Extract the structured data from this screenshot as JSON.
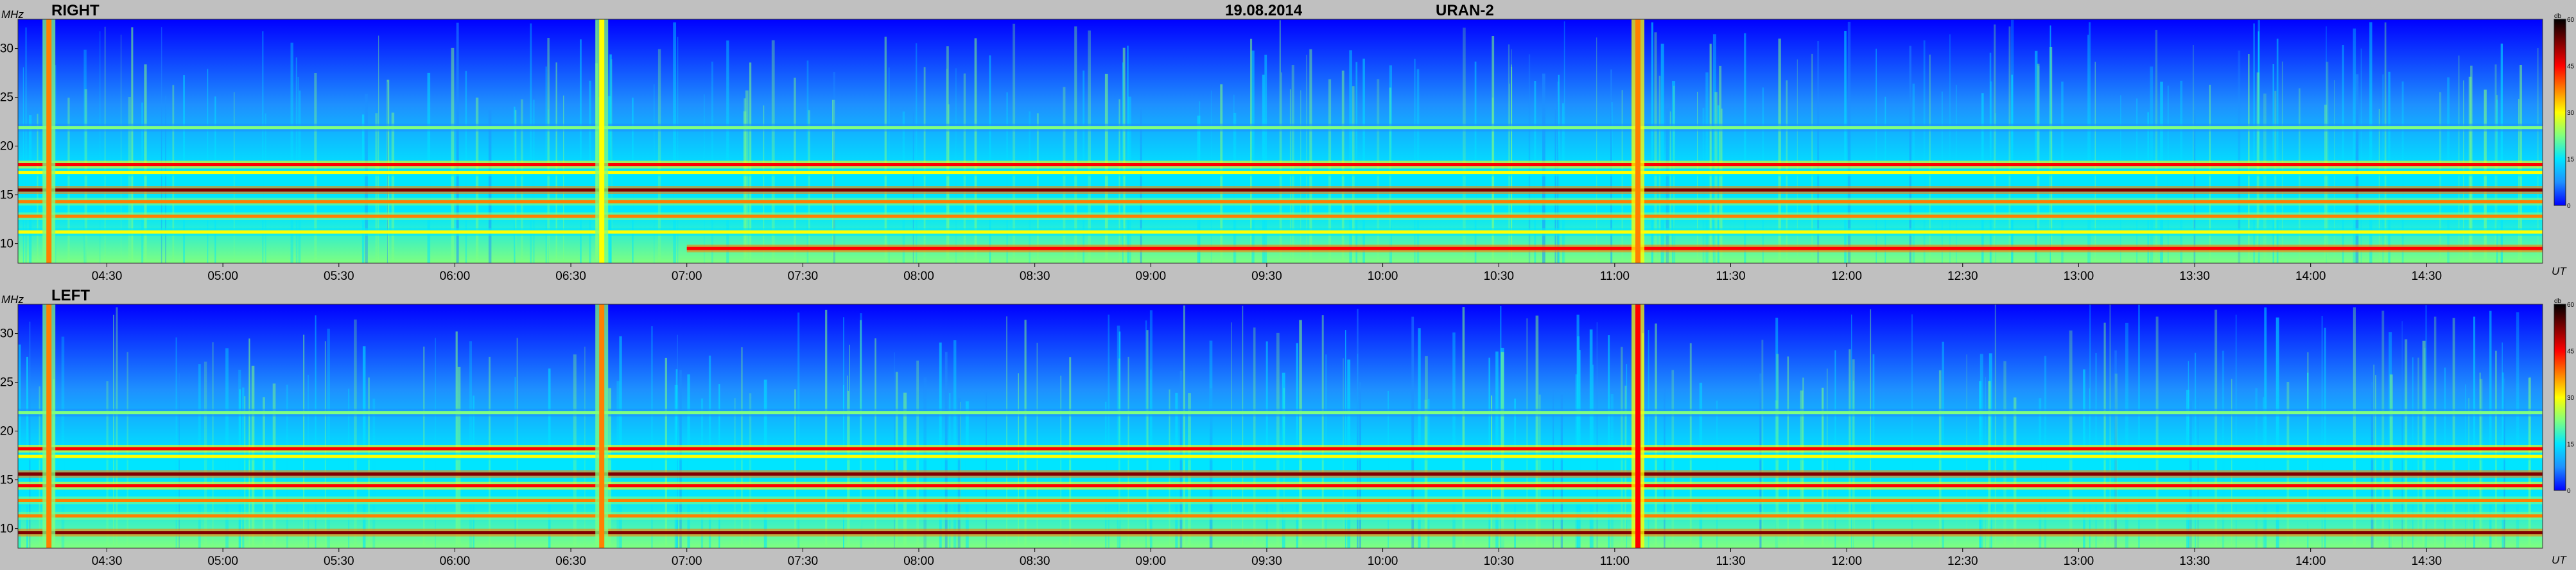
{
  "header": {
    "date": "19.08.2014",
    "instrument": "URAN-2"
  },
  "chart_data": {
    "type": "heatmap",
    "y_unit": "MHz",
    "x_unit": "UT",
    "x_range": [
      "04:07",
      "15:00"
    ],
    "y_range": [
      8,
      33
    ],
    "x_ticks": [
      "04:30",
      "05:00",
      "05:30",
      "06:00",
      "06:30",
      "07:00",
      "07:30",
      "08:00",
      "08:30",
      "09:00",
      "09:30",
      "10:00",
      "10:30",
      "11:00",
      "11:30",
      "12:00",
      "12:30",
      "13:00",
      "13:30",
      "14:00",
      "14:30"
    ],
    "y_ticks": [
      10,
      15,
      20,
      25,
      30
    ],
    "colorbar": {
      "unit": "db",
      "ticks": [
        0,
        15,
        30,
        45,
        60
      ],
      "range": [
        0,
        60
      ],
      "colors": [
        "#0000ff",
        "#1e90ff",
        "#00e5ff",
        "#7fff7f",
        "#ffff00",
        "#ff8000",
        "#ff0000",
        "#800000",
        "#000000"
      ]
    },
    "panels": [
      {
        "label": "RIGHT",
        "horizontal_bands_mhz": [
          {
            "f": 9.5,
            "level": 48,
            "start": "07:00"
          },
          {
            "f": 11.2,
            "level": 30
          },
          {
            "f": 12.8,
            "level": 36
          },
          {
            "f": 14.3,
            "level": 38
          },
          {
            "f": 15.5,
            "level": 50
          },
          {
            "f": 17.3,
            "level": 28
          },
          {
            "f": 18.1,
            "level": 46
          },
          {
            "f": 21.9,
            "level": 22
          }
        ],
        "vertical_bursts_ut": [
          {
            "t": "04:15",
            "level": 36
          },
          {
            "t": "06:38",
            "level": 32
          },
          {
            "t": "11:06",
            "level": 40
          }
        ]
      },
      {
        "label": "LEFT",
        "horizontal_bands_mhz": [
          {
            "f": 9.6,
            "level": 50
          },
          {
            "f": 11.3,
            "level": 36
          },
          {
            "f": 12.9,
            "level": 40
          },
          {
            "f": 14.4,
            "level": 42
          },
          {
            "f": 15.6,
            "level": 50
          },
          {
            "f": 17.4,
            "level": 30
          },
          {
            "f": 18.2,
            "level": 46
          },
          {
            "f": 21.9,
            "level": 22
          }
        ],
        "vertical_bursts_ut": [
          {
            "t": "04:15",
            "level": 36
          },
          {
            "t": "06:38",
            "level": 34
          },
          {
            "t": "11:06",
            "level": 42
          }
        ]
      }
    ]
  }
}
